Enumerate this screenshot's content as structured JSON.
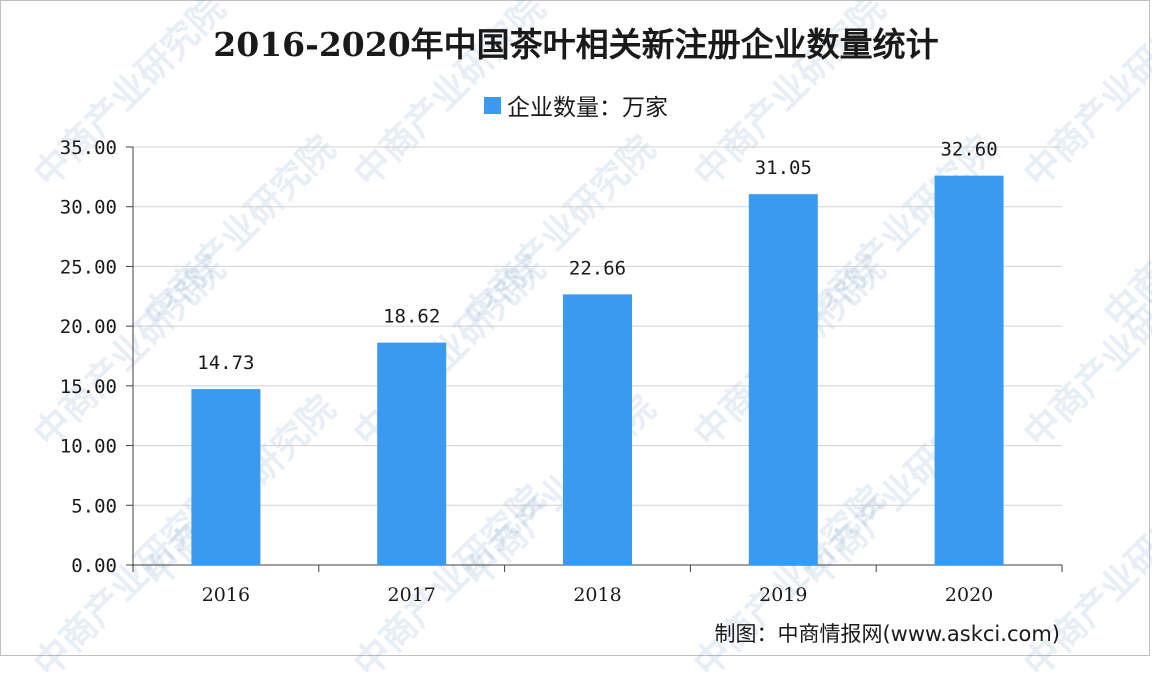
{
  "watermark": "中商产业研究院",
  "credit": "制图：中商情报网(www.askci.com)",
  "colors": {
    "bar": "#3a9af0",
    "grid": "#d0d0d0",
    "axis": "#404040"
  },
  "chart_data": {
    "type": "bar",
    "title": "2016-2020年中国茶叶相关新注册企业数量统计",
    "legend": "企业数量：万家",
    "legend_position": "top",
    "categories": [
      "2016",
      "2017",
      "2018",
      "2019",
      "2020"
    ],
    "series": [
      {
        "name": "企业数量：万家",
        "values": [
          14.73,
          18.62,
          22.66,
          31.05,
          32.6
        ]
      }
    ],
    "data_labels": [
      "14.73",
      "18.62",
      "22.66",
      "31.05",
      "32.60"
    ],
    "yticks": [
      "0.00",
      "5.00",
      "10.00",
      "15.00",
      "20.00",
      "25.00",
      "30.00",
      "35.00"
    ],
    "ylim": [
      0,
      35
    ],
    "grid": true
  }
}
